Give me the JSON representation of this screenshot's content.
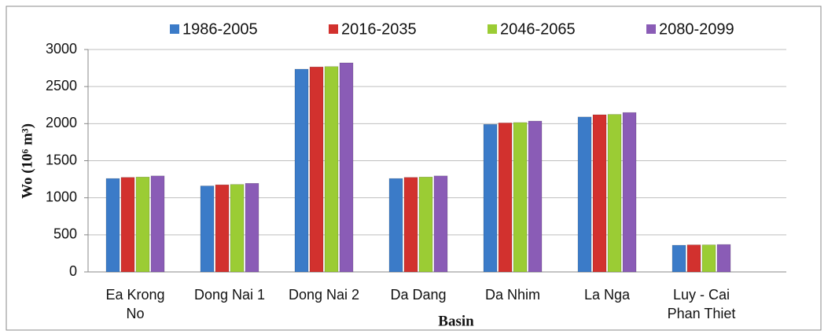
{
  "chart_data": {
    "type": "bar",
    "categories": [
      "Ea Krong No",
      "Dong Nai 1",
      "Dong Nai 2",
      "Da Dang",
      "Da Nhim",
      "La Nga",
      "Luy - Cai Phan Thiet"
    ],
    "series": [
      {
        "name": "1986-2005",
        "color": "#3b7bc8",
        "values": [
          1260,
          1160,
          2735,
          1260,
          1990,
          2090,
          360
        ]
      },
      {
        "name": "2016-2035",
        "color": "#d2312e",
        "values": [
          1275,
          1175,
          2765,
          1275,
          2010,
          2120,
          365
        ]
      },
      {
        "name": "2046-2065",
        "color": "#9bcc34",
        "values": [
          1280,
          1180,
          2770,
          1280,
          2015,
          2125,
          365
        ]
      },
      {
        "name": "2080-2099",
        "color": "#8a5cb6",
        "values": [
          1295,
          1195,
          2820,
          1295,
          2035,
          2150,
          370
        ]
      }
    ],
    "ylabel": "Wo (10⁶ m³)",
    "xlabel": "Basin",
    "ylim": [
      0,
      3000
    ],
    "yticks": [
      0,
      500,
      1000,
      1500,
      2000,
      2500,
      3000
    ],
    "grid": true,
    "legend": "top"
  }
}
